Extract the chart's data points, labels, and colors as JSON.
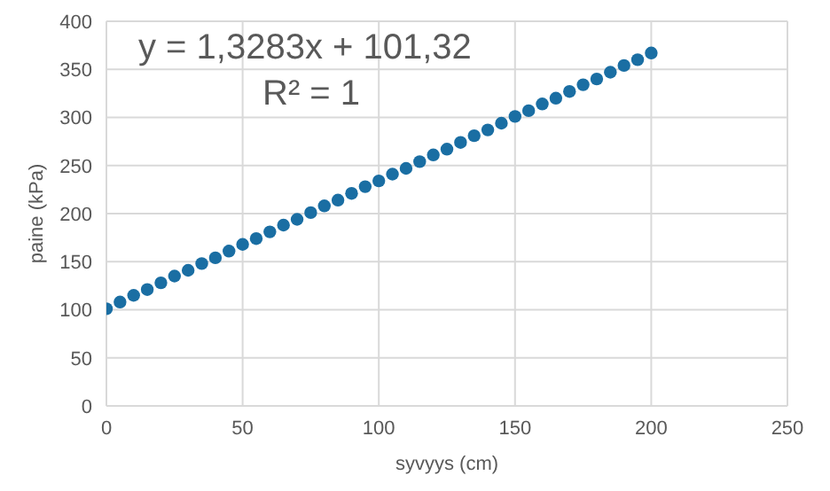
{
  "chart_data": {
    "type": "scatter",
    "xlabel": "syvyys (cm)",
    "ylabel": "paine (kPa)",
    "annotations": [
      "y = 1,3283x + 101,32",
      "R² = 1"
    ],
    "x": [
      0,
      5,
      10,
      15,
      20,
      25,
      30,
      35,
      40,
      45,
      50,
      55,
      60,
      65,
      70,
      75,
      80,
      85,
      90,
      95,
      100,
      105,
      110,
      115,
      120,
      125,
      130,
      135,
      140,
      145,
      150,
      155,
      160,
      165,
      170,
      175,
      180,
      185,
      190,
      195,
      200
    ],
    "series": [
      {
        "color": "#1a6ea3",
        "values": [
          101,
          108,
          115,
          121,
          128,
          135,
          141,
          148,
          154,
          161,
          168,
          174,
          181,
          188,
          194,
          201,
          208,
          214,
          221,
          228,
          234,
          241,
          247,
          254,
          261,
          267,
          274,
          281,
          287,
          294,
          301,
          307,
          314,
          320,
          327,
          334,
          340,
          347,
          354,
          360,
          367
        ]
      }
    ],
    "xlim": [
      0,
      250
    ],
    "xticks": [
      0,
      50,
      100,
      150,
      200,
      250
    ],
    "ylim": [
      0,
      400
    ],
    "yticks": [
      0,
      50,
      100,
      150,
      200,
      250,
      300,
      350,
      400
    ],
    "grid": true,
    "legend": false,
    "marker": "circle"
  }
}
